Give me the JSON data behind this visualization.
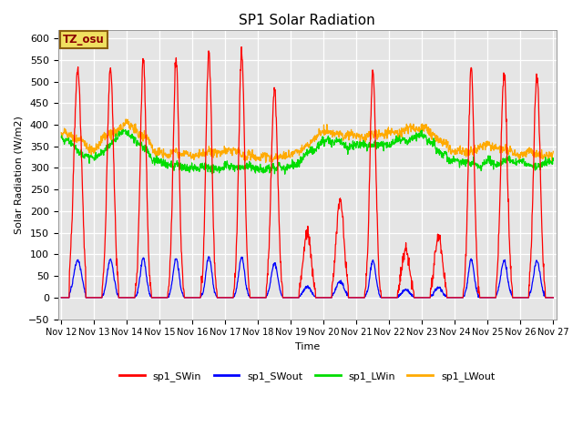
{
  "title": "SP1 Solar Radiation",
  "ylabel": "Solar Radiation (W/m2)",
  "xlabel": "Time",
  "ylim": [
    -50,
    620
  ],
  "bg_color": "#e5e5e5",
  "plot_bg": "#e5e5e5",
  "tz_label": "TZ_osu",
  "legend_labels": [
    "sp1_SWin",
    "sp1_SWout",
    "sp1_LWin",
    "sp1_LWout"
  ],
  "legend_colors": [
    "#ff0000",
    "#0000ff",
    "#00dd00",
    "#ffaa00"
  ],
  "xtick_labels": [
    "Nov 12",
    "Nov 13",
    "Nov 14",
    "Nov 15",
    "Nov 16",
    "Nov 17",
    "Nov 18",
    "Nov 19",
    "Nov 20",
    "Nov 21",
    "Nov 22",
    "Nov 23",
    "Nov 24",
    "Nov 25",
    "Nov 26",
    "Nov 27"
  ],
  "ytick_values": [
    -50,
    0,
    50,
    100,
    150,
    200,
    250,
    300,
    350,
    400,
    450,
    500,
    550,
    600
  ]
}
